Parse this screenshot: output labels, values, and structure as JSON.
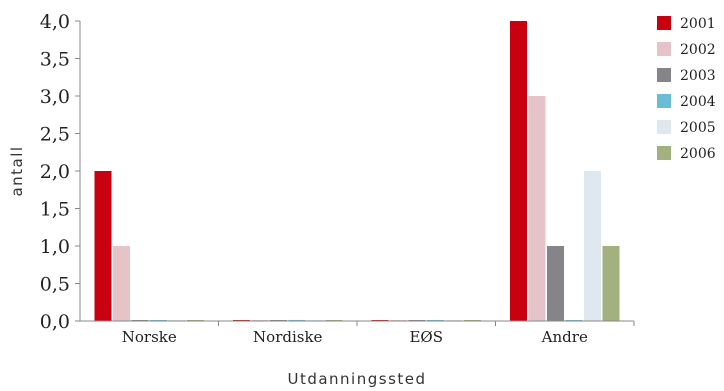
{
  "chart_data": {
    "type": "bar",
    "categories": [
      "Norske",
      "Nordiske",
      "EØS",
      "Andre"
    ],
    "series": [
      {
        "name": "2001",
        "color": "#c8000f",
        "values": [
          2,
          0,
          0,
          4
        ]
      },
      {
        "name": "2002",
        "color": "#e6c3c6",
        "values": [
          1,
          0,
          0,
          3
        ]
      },
      {
        "name": "2003",
        "color": "#848489",
        "values": [
          0,
          0,
          0,
          1
        ]
      },
      {
        "name": "2004",
        "color": "#6cbcd6",
        "values": [
          0,
          0,
          0,
          0
        ]
      },
      {
        "name": "2005",
        "color": "#dfe8ef",
        "values": [
          0,
          0,
          0,
          2
        ]
      },
      {
        "name": "2006",
        "color": "#a2b17d",
        "values": [
          0,
          0,
          0,
          1
        ]
      }
    ],
    "yticks": [
      "0,0",
      "0,5",
      "1,0",
      "1,5",
      "2,0",
      "2,5",
      "3,0",
      "3,5",
      "4,0"
    ],
    "ylim": [
      0,
      4
    ],
    "xlabel": "Utdanningssted",
    "ylabel": "antall",
    "legend_position": "right",
    "grid": false
  }
}
